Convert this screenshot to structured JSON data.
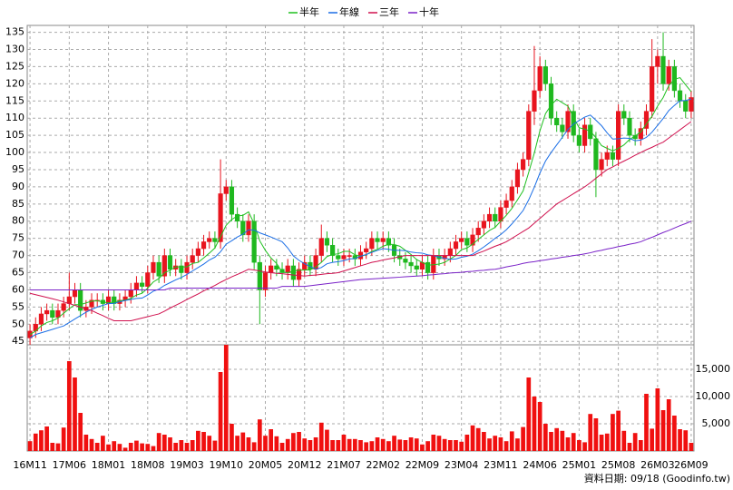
{
  "chart_data": {
    "type": "candlestick",
    "footer": "資料日期: 09/18 (Goodinfo.tw)",
    "categories": [
      "16M11",
      null,
      null,
      null,
      null,
      null,
      null,
      "17M06",
      null,
      null,
      null,
      null,
      null,
      null,
      "18M01",
      null,
      null,
      null,
      null,
      null,
      null,
      "18M08",
      null,
      null,
      null,
      null,
      null,
      null,
      "19M03",
      null,
      null,
      null,
      null,
      null,
      null,
      "19M10",
      null,
      null,
      null,
      null,
      null,
      null,
      "20M05",
      null,
      null,
      null,
      null,
      null,
      null,
      "20M12",
      null,
      null,
      null,
      null,
      null,
      null,
      "21M07",
      null,
      null,
      null,
      null,
      null,
      null,
      "22M02",
      null,
      null,
      null,
      null,
      null,
      null,
      "22M09",
      null,
      null,
      null,
      null,
      null,
      null,
      "23M04",
      null,
      null,
      null,
      null,
      null,
      null,
      "23M11",
      null,
      null,
      null,
      null,
      null,
      null,
      "24M06",
      null,
      null,
      null,
      null,
      null,
      null,
      "25M01",
      null,
      null,
      null,
      null,
      null,
      null,
      "25M08",
      null,
      null,
      null,
      null,
      null,
      null,
      "26M03",
      null,
      null,
      null,
      null,
      null,
      "26M09"
    ],
    "open": [
      46,
      48,
      50,
      53,
      54,
      52,
      54,
      56,
      58,
      60,
      54,
      55,
      57,
      57,
      56,
      58,
      56,
      57,
      58,
      60,
      62,
      61,
      65,
      68,
      64,
      70,
      66,
      67,
      65,
      68,
      70,
      72,
      74,
      75,
      74,
      88,
      90,
      82,
      80,
      76,
      80,
      68,
      60,
      65,
      67,
      66,
      65,
      67,
      63,
      66,
      68,
      66,
      70,
      75,
      73,
      70,
      69,
      70,
      70,
      69,
      71,
      72,
      75,
      74,
      75,
      73,
      70,
      69,
      68,
      67,
      66,
      68,
      65,
      70,
      69,
      70,
      72,
      74,
      75,
      73,
      76,
      78,
      80,
      82,
      80,
      84,
      86,
      90,
      95,
      98,
      112,
      118,
      125,
      120,
      110,
      108,
      106,
      112,
      105,
      102,
      108,
      104,
      95,
      98,
      100,
      98,
      112,
      110,
      105,
      104,
      107,
      112,
      125,
      128,
      120,
      125,
      118,
      115,
      112
    ],
    "high": [
      50,
      52,
      55,
      56,
      56,
      56,
      58,
      65,
      62,
      62,
      57,
      59,
      59,
      59,
      60,
      60,
      59,
      60,
      62,
      64,
      64,
      67,
      70,
      70,
      72,
      72,
      69,
      69,
      70,
      72,
      74,
      76,
      77,
      77,
      98,
      92,
      92,
      84,
      82,
      82,
      82,
      70,
      67,
      69,
      69,
      68,
      69,
      69,
      68,
      70,
      70,
      72,
      79,
      77,
      75,
      72,
      72,
      72,
      72,
      73,
      74,
      77,
      77,
      77,
      77,
      75,
      72,
      71,
      70,
      69,
      70,
      70,
      72,
      72,
      72,
      74,
      76,
      77,
      77,
      78,
      80,
      82,
      84,
      84,
      86,
      88,
      92,
      97,
      100,
      114,
      131,
      128,
      127,
      122,
      112,
      110,
      114,
      114,
      107,
      110,
      110,
      106,
      100,
      102,
      102,
      114,
      114,
      112,
      107,
      109,
      114,
      133,
      130,
      135,
      127,
      127,
      120,
      117,
      118
    ],
    "low": [
      44,
      46,
      48,
      51,
      50,
      50,
      52,
      54,
      56,
      52,
      52,
      53,
      55,
      54,
      54,
      54,
      54,
      55,
      56,
      58,
      59,
      59,
      63,
      62,
      62,
      64,
      64,
      63,
      63,
      66,
      68,
      70,
      72,
      72,
      72,
      86,
      80,
      78,
      74,
      74,
      66,
      50,
      58,
      63,
      64,
      63,
      63,
      61,
      61,
      64,
      64,
      64,
      68,
      71,
      68,
      67,
      67,
      68,
      67,
      67,
      69,
      70,
      72,
      72,
      71,
      68,
      67,
      66,
      65,
      64,
      64,
      63,
      63,
      67,
      67,
      68,
      70,
      72,
      71,
      71,
      74,
      76,
      78,
      78,
      78,
      82,
      84,
      88,
      93,
      96,
      108,
      116,
      118,
      108,
      106,
      104,
      104,
      103,
      100,
      100,
      102,
      87,
      93,
      96,
      96,
      96,
      108,
      103,
      102,
      102,
      105,
      110,
      120,
      118,
      118,
      116,
      113,
      110,
      110
    ],
    "close": [
      48,
      50,
      53,
      54,
      52,
      54,
      56,
      58,
      60,
      54,
      55,
      57,
      57,
      56,
      58,
      56,
      57,
      58,
      60,
      62,
      61,
      65,
      68,
      64,
      70,
      66,
      67,
      65,
      68,
      70,
      72,
      74,
      75,
      74,
      88,
      90,
      82,
      80,
      76,
      80,
      68,
      60,
      65,
      67,
      66,
      65,
      67,
      63,
      66,
      68,
      66,
      70,
      75,
      73,
      70,
      69,
      70,
      70,
      69,
      71,
      72,
      75,
      74,
      75,
      73,
      70,
      69,
      68,
      67,
      66,
      68,
      65,
      70,
      69,
      70,
      72,
      74,
      75,
      73,
      76,
      78,
      80,
      82,
      80,
      84,
      86,
      90,
      95,
      98,
      112,
      118,
      125,
      120,
      110,
      108,
      106,
      112,
      105,
      102,
      108,
      104,
      95,
      98,
      100,
      98,
      112,
      110,
      105,
      104,
      107,
      112,
      125,
      128,
      120,
      125,
      118,
      115,
      112,
      116
    ],
    "up_color": "#e8141e",
    "down_color": "#1fb81f",
    "volume": [
      1800,
      3200,
      3800,
      4500,
      1500,
      1400,
      4300,
      16500,
      13500,
      7000,
      3000,
      2200,
      1500,
      2800,
      1200,
      1800,
      1300,
      600,
      1500,
      1900,
      1400,
      1300,
      900,
      3300,
      3000,
      2500,
      1500,
      2000,
      1500,
      2000,
      3700,
      3500,
      2800,
      1900,
      14500,
      19500,
      5000,
      2800,
      3400,
      2500,
      1600,
      5800,
      2800,
      4000,
      2700,
      1500,
      2200,
      3300,
      3500,
      2300,
      2000,
      2500,
      5200,
      3900,
      2000,
      2000,
      3000,
      2200,
      2200,
      2000,
      1600,
      1800,
      2500,
      2200,
      1800,
      2800,
      2100,
      2000,
      2500,
      2300,
      1200,
      1800,
      3000,
      2800,
      2200,
      2000,
      2000,
      1700,
      3000,
      4700,
      4200,
      3500,
      2300,
      2800,
      2500,
      1800,
      3600,
      2300,
      4400,
      13500,
      10000,
      9000,
      5000,
      3500,
      4200,
      3700,
      2500,
      3300,
      2000,
      1600,
      6800,
      6000,
      3000,
      3200,
      6800,
      7400,
      3700,
      1500,
      3300,
      2000,
      10500,
      4100,
      11500,
      7500,
      9500,
      6500,
      4000,
      3800,
      1500
    ],
    "volume_color": "#f01010",
    "series": [
      {
        "name": "半年",
        "color": "#1fc01f",
        "values": [
          47,
          48,
          49.5,
          50.5,
          51,
          51.8,
          53.2,
          54.5,
          55.7,
          55.7,
          56.2,
          56.7,
          56.8,
          56.5,
          56.2,
          56.5,
          56.8,
          57,
          57.5,
          58.5,
          59,
          60.5,
          62.3,
          63.3,
          65,
          65.7,
          66.7,
          66.7,
          66.7,
          67.7,
          68,
          69.3,
          70.7,
          72.2,
          75.5,
          78.8,
          80.5,
          81.5,
          81.7,
          82.7,
          79.3,
          74.3,
          71.5,
          69.3,
          67.7,
          65.2,
          65,
          65.5,
          65.7,
          65.8,
          65.8,
          66.7,
          68,
          69.7,
          70.3,
          70.5,
          71.2,
          71.2,
          70.2,
          69.8,
          70.2,
          71.2,
          71.8,
          72.7,
          73.3,
          73.2,
          72.7,
          71.5,
          70.3,
          68.8,
          68,
          67.2,
          67.3,
          67.5,
          68,
          69,
          70,
          71.7,
          72.2,
          73.3,
          74.7,
          76,
          77.3,
          78.2,
          80,
          81.7,
          83.7,
          86.2,
          88.8,
          94.2,
          99.8,
          106.3,
          111.3,
          113.8,
          115.5,
          114.5,
          113.5,
          110.2,
          107.2,
          106.8,
          106.2,
          104.3,
          102,
          101.2,
          100.5,
          101.2,
          102.2,
          103.8,
          104.8,
          106,
          108.3,
          110.5,
          113.5,
          116,
          119.5,
          121.3,
          121.8,
          119.7,
          117.7
        ]
      },
      {
        "name": "年線",
        "color": "#1a6ee6",
        "values": [
          46,
          47,
          47.5,
          48,
          48.5,
          49,
          49.5,
          50.5,
          51.5,
          52.5,
          53.5,
          54.3,
          55,
          55.5,
          56,
          56.1,
          56.5,
          56.9,
          57.2,
          57.5,
          57.6,
          58.5,
          59.6,
          60.2,
          61.3,
          62.1,
          62.9,
          63.6,
          64.5,
          65.5,
          66.5,
          67.5,
          68.7,
          69.5,
          71.1,
          73.3,
          74.3,
          75.4,
          76.2,
          77.5,
          77.4,
          76.6,
          76,
          75.4,
          74.7,
          74,
          72.2,
          69.9,
          68.6,
          67.6,
          66.8,
          66,
          66.5,
          67.6,
          68,
          68.2,
          68.5,
          69,
          69.1,
          69.8,
          70.3,
          70.9,
          71.5,
          72,
          71.8,
          71.5,
          71.5,
          71.4,
          71,
          70.8,
          70.7,
          70.2,
          70,
          69.5,
          69.2,
          68.9,
          69,
          69.5,
          69.8,
          70.4,
          71.4,
          72.5,
          73.7,
          75,
          76.1,
          77.5,
          79.2,
          81.1,
          83.1,
          86.2,
          89.9,
          94,
          97.5,
          100,
          102.2,
          104.4,
          106.7,
          108.3,
          109.3,
          110.3,
          110.9,
          109.4,
          107.8,
          105.7,
          103.9,
          104,
          104.2,
          104.1,
          103.4,
          103.6,
          104.4,
          105.9,
          107.9,
          109.9,
          112.2,
          113.7,
          115.1,
          115.1,
          115.6
        ]
      },
      {
        "name": "三年",
        "color": "#d0104e",
        "values": [
          59,
          58.6,
          58.2,
          57.8,
          57.4,
          57,
          56.5,
          56,
          55.5,
          55,
          54.5,
          54,
          53.2,
          52.5,
          51.7,
          51,
          51,
          51,
          51,
          51.4,
          51.8,
          52.2,
          52.6,
          53,
          53.8,
          54.7,
          55.5,
          56.3,
          57.2,
          58,
          58.8,
          59.7,
          60.5,
          61.3,
          62.2,
          63,
          63.8,
          64.5,
          65.2,
          66,
          65.8,
          65.5,
          65.2,
          65,
          64.8,
          64.7,
          64.5,
          64.3,
          64.2,
          64,
          64.2,
          64.3,
          64.5,
          64.7,
          64.8,
          65,
          65.5,
          66,
          66.5,
          67,
          67.5,
          68,
          68.3,
          68.7,
          69,
          69.3,
          69.7,
          70,
          70,
          70,
          70,
          70,
          70,
          70,
          70,
          70,
          70,
          70,
          70,
          70,
          70.7,
          71.3,
          72,
          72.7,
          73.3,
          74,
          75,
          76,
          77,
          78,
          79.4,
          80.8,
          82.2,
          83.6,
          85,
          86,
          87,
          88,
          89,
          90,
          91.2,
          92.5,
          93.8,
          95,
          95.8,
          96.7,
          97.5,
          98.3,
          99.2,
          100,
          100.8,
          101.5,
          102.3,
          103,
          104.2,
          105.4,
          106.6,
          107.8,
          109
        ]
      },
      {
        "name": "十年",
        "color": "#7a22c8",
        "values": [
          60,
          60,
          60,
          60,
          60,
          60,
          60,
          60,
          60,
          60,
          60,
          60,
          60,
          60,
          60,
          60,
          60,
          60,
          60,
          60,
          60,
          60,
          60,
          60,
          60,
          60.5,
          60.5,
          60.5,
          60.5,
          60.5,
          60.5,
          60.5,
          60.5,
          60.5,
          60.5,
          60.5,
          60.5,
          60.5,
          60.5,
          60.5,
          60.5,
          60.5,
          60.5,
          60.5,
          60.5,
          61,
          61,
          61,
          61,
          61,
          61.2,
          61.4,
          61.6,
          61.8,
          62,
          62.2,
          62.4,
          62.6,
          62.8,
          63,
          63.1,
          63.2,
          63.3,
          63.4,
          63.5,
          63.6,
          63.7,
          63.8,
          63.9,
          64,
          64.1,
          64.3,
          64.4,
          64.6,
          64.7,
          64.9,
          65,
          65.1,
          65.3,
          65.4,
          65.6,
          65.7,
          65.9,
          66,
          66.3,
          66.7,
          67,
          67.3,
          67.7,
          68,
          68.2,
          68.5,
          68.7,
          69,
          69.2,
          69.5,
          69.7,
          70,
          70.2,
          70.5,
          70.8,
          71.2,
          71.5,
          71.9,
          72.2,
          72.6,
          72.9,
          73.3,
          73.6,
          74,
          74.7,
          75.3,
          76,
          76.7,
          77.3,
          78,
          78.7,
          79.3,
          80
        ]
      }
    ],
    "ylim": [
      44,
      137
    ],
    "yticks": [
      45,
      50,
      55,
      60,
      65,
      70,
      75,
      80,
      85,
      90,
      95,
      100,
      105,
      110,
      115,
      120,
      125,
      130,
      135
    ],
    "y2lim": [
      0,
      19500
    ],
    "y2ticks": [
      {
        "value": 5000,
        "label": "5,000"
      },
      {
        "value": 10000,
        "label": "10,000"
      },
      {
        "value": 15000,
        "label": "15,000"
      }
    ],
    "grid": true
  }
}
